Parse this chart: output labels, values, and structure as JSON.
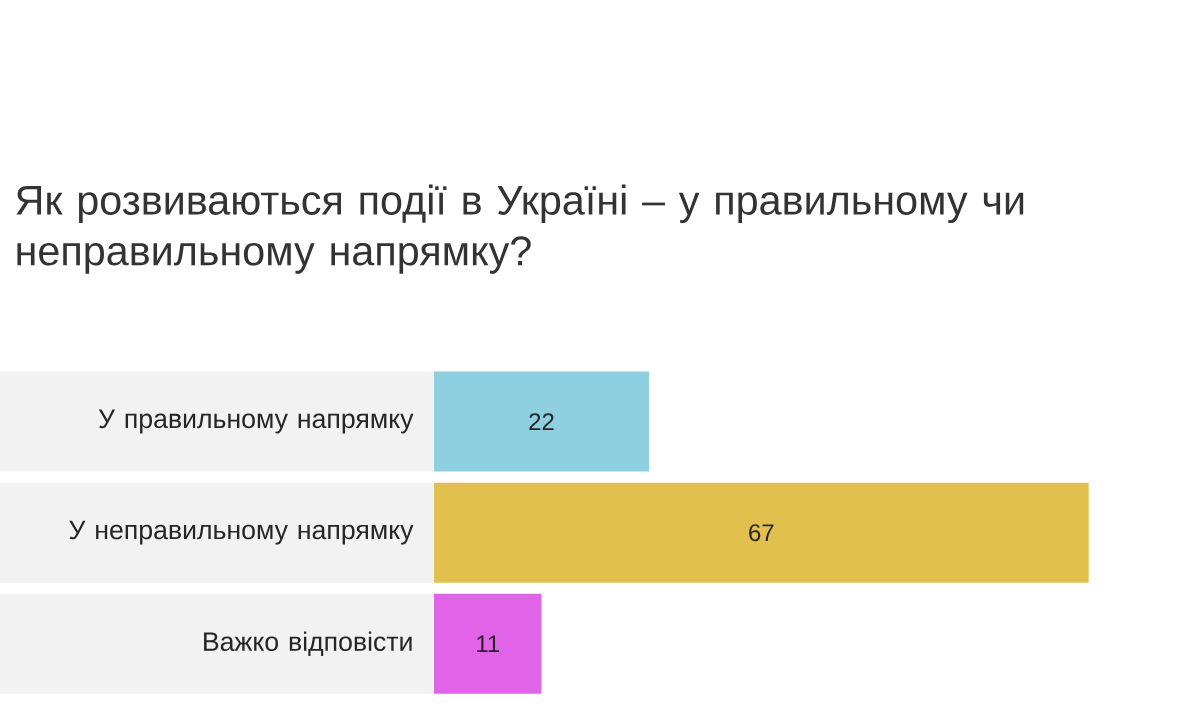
{
  "chart_data": {
    "type": "bar",
    "orientation": "horizontal",
    "title": "Як розвиваються події в Україні – у правильному чи неправильному напрямку?",
    "categories": [
      "У правильному напрямку",
      "У неправильному напрямку",
      "Важко відповісти"
    ],
    "values": [
      22,
      67,
      11
    ],
    "colors": [
      "#8ecfe0",
      "#e2c04e",
      "#e164e8"
    ],
    "data_labels": true
  }
}
